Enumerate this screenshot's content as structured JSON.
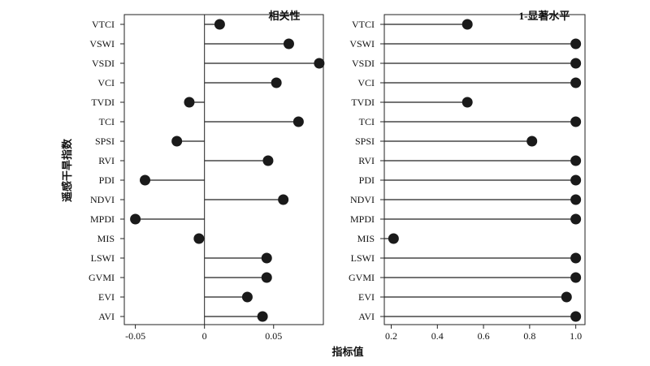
{
  "ylabel": "遥感干旱指数",
  "xlabel": "指标值",
  "categories": [
    "VTCI",
    "VSWI",
    "VSDI",
    "VCI",
    "TVDI",
    "TCI",
    "SPSI",
    "RVI",
    "PDI",
    "NDVI",
    "MPDI",
    "MIS",
    "LSWI",
    "GVMI",
    "EVI",
    "AVI"
  ],
  "chart_data": [
    {
      "type": "lollipop",
      "title": "相关性",
      "categories": [
        "VTCI",
        "VSWI",
        "VSDI",
        "VCI",
        "TVDI",
        "TCI",
        "SPSI",
        "RVI",
        "PDI",
        "NDVI",
        "MPDI",
        "MIS",
        "LSWI",
        "GVMI",
        "EVI",
        "AVI"
      ],
      "values": [
        0.011,
        0.061,
        0.083,
        0.052,
        -0.011,
        0.068,
        -0.02,
        0.046,
        -0.043,
        0.057,
        -0.05,
        -0.004,
        0.045,
        0.045,
        0.031,
        0.042
      ],
      "baseline": 0,
      "xlim": [
        -0.058,
        0.086
      ],
      "xticks": [
        -0.05,
        0,
        0.05
      ],
      "xtick_labels": [
        "-0.05",
        "0",
        "0.05"
      ],
      "grid": false
    },
    {
      "type": "lollipop",
      "title": "1-显著水平",
      "categories": [
        "VTCI",
        "VSWI",
        "VSDI",
        "VCI",
        "TVDI",
        "TCI",
        "SPSI",
        "RVI",
        "PDI",
        "NDVI",
        "MPDI",
        "MIS",
        "LSWI",
        "GVMI",
        "EVI",
        "AVI"
      ],
      "values": [
        0.53,
        1.0,
        1.0,
        1.0,
        0.53,
        1.0,
        0.81,
        1.0,
        1.0,
        1.0,
        1.0,
        0.21,
        1.0,
        1.0,
        0.96,
        1.0
      ],
      "baseline": "left-axis",
      "xlim": [
        0.17,
        1.04
      ],
      "xticks": [
        0.2,
        0.4,
        0.6,
        0.8,
        1.0
      ],
      "xtick_labels": [
        "0.2",
        "0.4",
        "0.6",
        "0.8",
        "1.0"
      ],
      "grid": false
    }
  ]
}
